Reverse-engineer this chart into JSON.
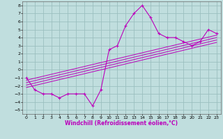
{
  "xlabel": "Windchill (Refroidissement éolien,°C)",
  "xlim": [
    -0.5,
    23.5
  ],
  "ylim": [
    -5.5,
    8.5
  ],
  "xticks": [
    0,
    1,
    2,
    3,
    4,
    5,
    6,
    7,
    8,
    9,
    10,
    11,
    12,
    13,
    14,
    15,
    16,
    17,
    18,
    19,
    20,
    21,
    22,
    23
  ],
  "yticks": [
    -5,
    -4,
    -3,
    -2,
    -1,
    0,
    1,
    2,
    3,
    4,
    5,
    6,
    7,
    8
  ],
  "line_color": "#bb00bb",
  "bg_color": "#c0dede",
  "grid_color": "#9bbfbf",
  "data_x": [
    0,
    1,
    2,
    3,
    4,
    5,
    6,
    7,
    8,
    9,
    10,
    11,
    12,
    13,
    14,
    15,
    16,
    17,
    18,
    19,
    20,
    21,
    22,
    23
  ],
  "data_y": [
    -1,
    -2.5,
    -3,
    -3,
    -3.5,
    -3,
    -3,
    -3,
    -4.5,
    -2.5,
    2.5,
    3,
    5.5,
    7,
    8,
    6.5,
    4.5,
    4,
    4,
    3.5,
    3,
    3.5,
    5,
    4.5
  ],
  "regression_lines": [
    {
      "x0": 0,
      "y0": -1.3,
      "x1": 23,
      "y1": 4.3
    },
    {
      "x0": 0,
      "y0": -1.6,
      "x1": 23,
      "y1": 4.0
    },
    {
      "x0": 0,
      "y0": -1.9,
      "x1": 23,
      "y1": 3.7
    },
    {
      "x0": 0,
      "y0": -2.2,
      "x1": 23,
      "y1": 3.4
    }
  ],
  "tick_fontsize": 4.5,
  "xlabel_fontsize": 5.5
}
